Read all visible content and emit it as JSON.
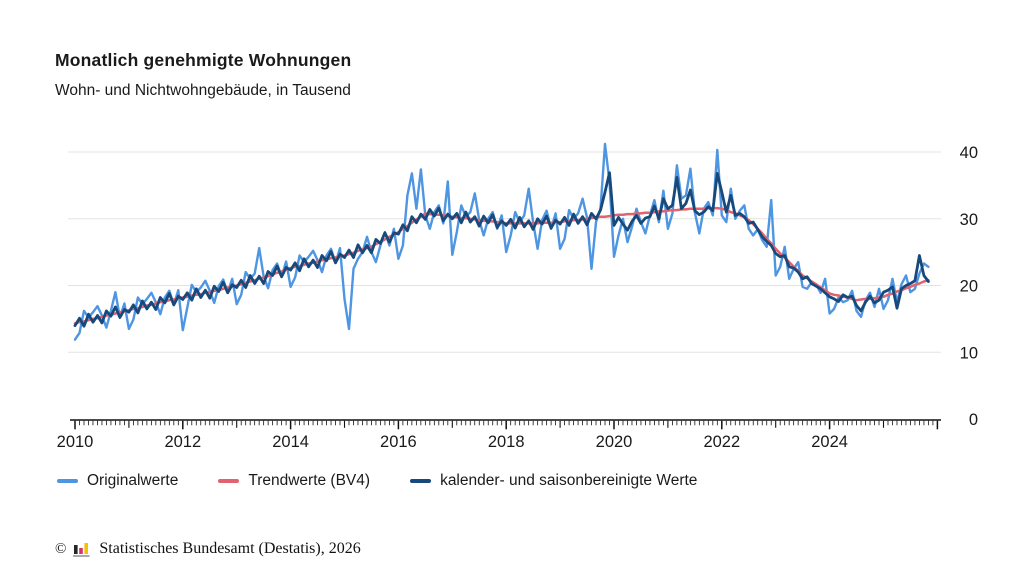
{
  "header": {
    "title": "Monatlich genehmigte Wohnungen",
    "subtitle": "Wohn- und Nichtwohngebäude, in Tausend"
  },
  "legend": {
    "items": [
      {
        "label": "Originalwerte",
        "color": "#4e95e2"
      },
      {
        "label": "Trendwerte (BV4)",
        "color": "#e2636f"
      },
      {
        "label": "kalender- und saisonbereinigte Werte",
        "color": "#17497b"
      }
    ]
  },
  "footer": {
    "copyright": "©",
    "source": "Statistisches Bundesamt (Destatis), 2026",
    "logo": {
      "name": "destatis-logo",
      "bar_black": "#262626",
      "bar_red": "#d5336a",
      "bar_gold": "#f0c400",
      "base": "#aaaaaa"
    }
  },
  "chart_data": {
    "type": "line",
    "title": "Monatlich genehmigte Wohnungen",
    "subtitle": "Wohn- und Nichtwohngebäude, in Tausend",
    "unit": "Tausend",
    "x_start": "2010-01",
    "x_end": "2025-11",
    "frequency": "monthly",
    "x_label_years": [
      2010,
      2012,
      2014,
      2016,
      2018,
      2020,
      2022,
      2024
    ],
    "y_ticks": [
      0,
      10,
      20,
      30,
      40
    ],
    "ylim": [
      0,
      42
    ],
    "grid": "horizontal",
    "y_axis_side": "right",
    "colors": {
      "grid": "#e3e3e3",
      "axis": "#111111",
      "text": "#1a1a1a"
    },
    "series": [
      {
        "name": "Originalwerte",
        "color": "#4e95e2",
        "width": 2.4,
        "values": [
          11.9,
          12.9,
          16.2,
          15.2,
          16.0,
          16.9,
          15.5,
          13.7,
          16.2,
          19.0,
          15.2,
          17.3,
          13.5,
          14.9,
          18.2,
          17.2,
          18.0,
          18.9,
          17.5,
          15.7,
          18.2,
          19.2,
          17.1,
          19.3,
          13.3,
          16.7,
          20.1,
          19.0,
          19.7,
          20.7,
          19.2,
          17.4,
          19.9,
          20.9,
          18.9,
          21.0,
          17.2,
          18.6,
          22.0,
          21.0,
          21.8,
          25.6,
          21.4,
          19.6,
          22.3,
          23.3,
          21.3,
          23.6,
          19.8,
          21.2,
          24.5,
          23.5,
          24.3,
          25.2,
          23.8,
          22.0,
          24.5,
          25.5,
          23.4,
          25.6,
          18.0,
          13.5,
          22.5,
          24.0,
          25.0,
          27.3,
          25.0,
          23.5,
          26.0,
          28.0,
          26.0,
          28.5,
          24.0,
          26.0,
          33.5,
          36.8,
          31.5,
          37.4,
          30.5,
          28.5,
          31.0,
          32.0,
          29.3,
          35.6,
          24.6,
          28.0,
          32.0,
          30.3,
          31.0,
          33.8,
          29.8,
          27.5,
          30.0,
          31.0,
          28.5,
          30.5,
          25.0,
          27.5,
          31.0,
          29.5,
          30.5,
          34.5,
          29.5,
          25.5,
          29.8,
          31.2,
          28.5,
          30.8,
          25.5,
          27.0,
          31.3,
          30.0,
          30.8,
          33.0,
          30.2,
          22.5,
          29.5,
          31.5,
          41.2,
          35.5,
          24.3,
          27.5,
          30.0,
          26.5,
          28.8,
          31.5,
          29.5,
          27.8,
          30.5,
          32.8,
          29.5,
          34.2,
          28.5,
          30.8,
          38.0,
          33.0,
          33.5,
          37.5,
          31.0,
          27.8,
          31.5,
          32.5,
          30.5,
          40.3,
          30.5,
          29.5,
          34.5,
          30.0,
          31.2,
          32.0,
          28.5,
          27.5,
          28.4,
          26.8,
          25.8,
          32.8,
          21.5,
          22.8,
          25.8,
          21.0,
          22.5,
          23.5,
          19.8,
          19.5,
          20.5,
          20.2,
          18.9,
          21.0,
          15.8,
          16.5,
          18.2,
          17.5,
          17.8,
          19.2,
          16.2,
          15.3,
          17.8,
          18.9,
          16.8,
          19.5,
          16.5,
          17.8,
          21.0,
          17.5,
          20.2,
          21.5,
          19.0,
          19.5,
          21.8,
          23.3,
          22.8
        ]
      },
      {
        "name": "Trendwerte (BV4)",
        "color": "#e2636f",
        "width": 2.5,
        "values": [
          14.3,
          14.5,
          14.6,
          14.8,
          15.0,
          15.1,
          15.3,
          15.5,
          15.6,
          15.8,
          16.0,
          16.1,
          16.3,
          16.5,
          16.6,
          16.8,
          17.0,
          17.1,
          17.3,
          17.5,
          17.6,
          17.8,
          17.9,
          18.1,
          18.2,
          18.3,
          18.5,
          18.6,
          18.7,
          18.9,
          19.0,
          19.2,
          19.3,
          19.5,
          19.7,
          19.8,
          20.0,
          20.2,
          20.4,
          20.6,
          20.8,
          21.0,
          21.2,
          21.4,
          21.7,
          21.9,
          22.1,
          22.4,
          22.6,
          22.8,
          22.9,
          23.1,
          23.3,
          23.4,
          23.6,
          23.8,
          23.9,
          24.1,
          24.2,
          24.4,
          24.5,
          24.7,
          24.9,
          25.2,
          25.4,
          25.6,
          25.8,
          26.2,
          26.5,
          26.9,
          27.3,
          27.6,
          28.0,
          28.5,
          28.9,
          29.4,
          29.9,
          30.3,
          30.8,
          30.7,
          30.6,
          30.6,
          30.5,
          30.4,
          30.3,
          30.2,
          30.1,
          30.1,
          30.0,
          29.9,
          29.8,
          29.7,
          29.6,
          29.6,
          29.5,
          29.4,
          29.3,
          29.3,
          29.3,
          29.3,
          29.3,
          29.3,
          29.3,
          29.3,
          29.4,
          29.4,
          29.4,
          29.5,
          29.5,
          29.6,
          29.7,
          29.8,
          29.8,
          29.9,
          30.0,
          30.1,
          30.2,
          30.3,
          30.3,
          30.4,
          30.5,
          30.6,
          30.6,
          30.7,
          30.7,
          30.8,
          30.8,
          30.9,
          30.9,
          31.0,
          31.1,
          31.1,
          31.2,
          31.3,
          31.3,
          31.4,
          31.4,
          31.5,
          31.5,
          31.5,
          31.5,
          31.6,
          31.6,
          31.6,
          31.5,
          31.3,
          31.0,
          30.8,
          30.5,
          30.2,
          29.8,
          29.2,
          28.5,
          27.8,
          27.0,
          26.3,
          25.5,
          24.8,
          24.2,
          23.5,
          22.8,
          22.2,
          21.5,
          21.1,
          20.6,
          20.2,
          19.7,
          19.3,
          18.8,
          18.6,
          18.5,
          18.3,
          18.2,
          18.0,
          17.8,
          17.9,
          18.0,
          18.0,
          18.1,
          18.2,
          18.3,
          18.6,
          18.8,
          19.1,
          19.3,
          19.6,
          19.8,
          20.1,
          20.3,
          20.6,
          20.8
        ]
      },
      {
        "name": "kalender- und saisonbereinigte Werte",
        "color": "#17497b",
        "width": 2.8,
        "values": [
          14.0,
          15.1,
          13.9,
          15.7,
          14.5,
          15.5,
          14.4,
          16.2,
          15.4,
          16.8,
          15.2,
          16.4,
          16.0,
          17.1,
          15.9,
          17.7,
          16.5,
          17.5,
          16.4,
          18.2,
          17.4,
          18.8,
          17.1,
          18.4,
          17.9,
          18.9,
          17.8,
          19.5,
          18.2,
          19.3,
          18.1,
          19.9,
          19.1,
          20.5,
          18.9,
          20.1,
          19.7,
          20.8,
          19.7,
          21.5,
          20.3,
          21.4,
          20.3,
          22.1,
          21.5,
          22.9,
          21.3,
          22.7,
          22.3,
          23.4,
          22.2,
          24.0,
          22.8,
          23.8,
          22.7,
          24.5,
          23.7,
          25.1,
          23.4,
          24.7,
          24.2,
          25.3,
          24.2,
          26.1,
          24.9,
          26.0,
          24.9,
          26.9,
          26.3,
          27.9,
          26.5,
          27.9,
          27.7,
          29.1,
          28.2,
          30.3,
          29.4,
          30.7,
          29.9,
          31.4,
          30.4,
          31.6,
          29.7,
          30.7,
          30.0,
          30.8,
          29.4,
          31.0,
          29.5,
          30.3,
          28.9,
          30.4,
          29.4,
          30.6,
          28.7,
          29.7,
          29.0,
          29.9,
          28.6,
          30.2,
          28.8,
          29.7,
          28.4,
          30.0,
          29.2,
          30.4,
          28.6,
          29.8,
          29.2,
          30.2,
          29.0,
          30.7,
          29.3,
          30.3,
          29.1,
          30.8,
          30.0,
          31.3,
          34.0,
          36.9,
          29.0,
          30.2,
          29.2,
          28.3,
          29.6,
          30.5,
          29.3,
          30.1,
          30.3,
          31.9,
          30.0,
          33.0,
          31.5,
          32.0,
          36.2,
          31.5,
          32.3,
          34.3,
          31.2,
          30.6,
          31.0,
          31.8,
          31.2,
          36.8,
          34.0,
          31.0,
          33.5,
          30.5,
          30.8,
          30.3,
          29.3,
          29.5,
          28.4,
          27.3,
          26.6,
          26.0,
          24.8,
          24.3,
          24.5,
          22.8,
          22.6,
          22.0,
          21.0,
          21.3,
          20.3,
          19.9,
          19.5,
          18.9,
          18.3,
          18.0,
          17.6,
          18.6,
          18.2,
          18.4,
          17.0,
          16.2,
          17.5,
          18.4,
          17.4,
          17.8,
          19.0,
          19.3,
          19.8,
          16.6,
          19.5,
          20.0,
          20.3,
          20.7,
          24.5,
          21.5,
          20.6
        ]
      }
    ]
  }
}
